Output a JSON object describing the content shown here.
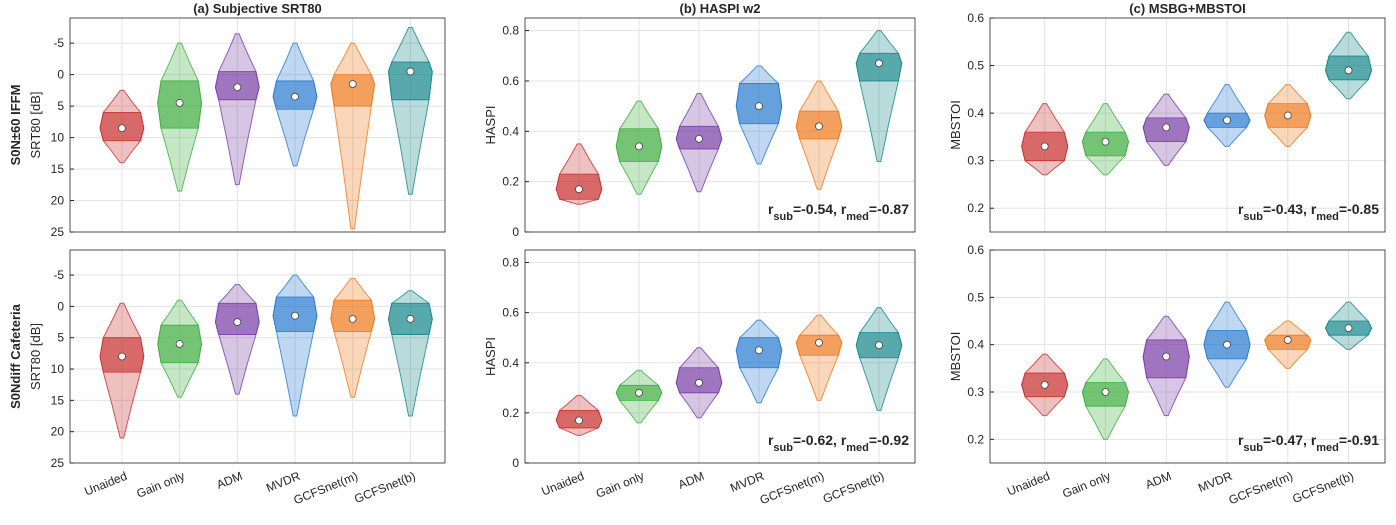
{
  "chart_data": [
    {
      "type": "violin",
      "title": "(a) Subjective SRT80",
      "row_label": "S0N±60 IFFM",
      "ylabel": "SRT80 [dB]",
      "ylim": [
        -9,
        25
      ],
      "y_reversed": true,
      "yticks": [
        -5,
        0,
        5,
        10,
        15,
        20,
        25
      ],
      "grid": true,
      "series": [
        {
          "color": "#c8302e",
          "min": 2.5,
          "q1": 6,
          "median": 8.5,
          "q3": 10.5,
          "max": 14
        },
        {
          "color": "#3fae3f",
          "min": -5,
          "q1": 1,
          "median": 4.5,
          "q3": 8.5,
          "max": 18.5
        },
        {
          "color": "#7b3fa6",
          "min": -6.5,
          "q1": -0.5,
          "median": 2,
          "q3": 4,
          "max": 17.5
        },
        {
          "color": "#2b7bd0",
          "min": -5,
          "q1": 1,
          "median": 3.5,
          "q3": 5.5,
          "max": 14.5
        },
        {
          "color": "#ee7a1e",
          "min": -5,
          "q1": 0,
          "median": 1.5,
          "q3": 5,
          "max": 24.5
        },
        {
          "color": "#17878a",
          "min": -7.5,
          "q1": -2,
          "median": -0.5,
          "q3": 4,
          "max": 19
        }
      ]
    },
    {
      "type": "violin",
      "title": "(b) HASPI w2",
      "ylabel": "HASPI",
      "ylim": [
        0,
        0.85
      ],
      "yticks": [
        0,
        0.2,
        0.4,
        0.6,
        0.8
      ],
      "grid": true,
      "annotation": [
        "r",
        "sub",
        "=-0.54, r",
        "med",
        "=-0.87"
      ],
      "series": [
        {
          "color": "#c8302e",
          "min": 0.11,
          "q1": 0.13,
          "median": 0.17,
          "q3": 0.23,
          "max": 0.35
        },
        {
          "color": "#3fae3f",
          "min": 0.15,
          "q1": 0.28,
          "median": 0.34,
          "q3": 0.41,
          "max": 0.52
        },
        {
          "color": "#7b3fa6",
          "min": 0.16,
          "q1": 0.33,
          "median": 0.37,
          "q3": 0.42,
          "max": 0.55
        },
        {
          "color": "#2b7bd0",
          "min": 0.27,
          "q1": 0.43,
          "median": 0.5,
          "q3": 0.59,
          "max": 0.66
        },
        {
          "color": "#ee7a1e",
          "min": 0.17,
          "q1": 0.37,
          "median": 0.42,
          "q3": 0.48,
          "max": 0.6
        },
        {
          "color": "#17878a",
          "min": 0.28,
          "q1": 0.6,
          "median": 0.67,
          "q3": 0.71,
          "max": 0.8
        }
      ]
    },
    {
      "type": "violin",
      "title": "(c) MSBG+MBSTOI",
      "ylabel": "MBSTOI",
      "ylim": [
        0.15,
        0.6
      ],
      "yticks": [
        0.2,
        0.3,
        0.4,
        0.5,
        0.6
      ],
      "grid": true,
      "annotation": [
        "r",
        "sub",
        "=-0.43, r",
        "med",
        "=-0.85"
      ],
      "series": [
        {
          "color": "#c8302e",
          "min": 0.27,
          "q1": 0.3,
          "median": 0.33,
          "q3": 0.36,
          "max": 0.42
        },
        {
          "color": "#3fae3f",
          "min": 0.27,
          "q1": 0.31,
          "median": 0.34,
          "q3": 0.36,
          "max": 0.42
        },
        {
          "color": "#7b3fa6",
          "min": 0.29,
          "q1": 0.34,
          "median": 0.37,
          "q3": 0.39,
          "max": 0.44
        },
        {
          "color": "#2b7bd0",
          "min": 0.33,
          "q1": 0.37,
          "median": 0.385,
          "q3": 0.4,
          "max": 0.46
        },
        {
          "color": "#ee7a1e",
          "min": 0.33,
          "q1": 0.37,
          "median": 0.395,
          "q3": 0.42,
          "max": 0.46
        },
        {
          "color": "#17878a",
          "min": 0.43,
          "q1": 0.47,
          "median": 0.49,
          "q3": 0.52,
          "max": 0.57
        }
      ]
    },
    {
      "type": "violin",
      "row_label": "S0Ndiff Cafeteria",
      "ylabel": "SRT80 [dB]",
      "ylim": [
        -9,
        25
      ],
      "y_reversed": true,
      "yticks": [
        -5,
        0,
        5,
        10,
        15,
        20,
        25
      ],
      "grid": true,
      "categories": [
        "Unaided",
        "Gain only",
        "ADM",
        "MVDR",
        "GCFSnet(m)",
        "GCFSnet(b)"
      ],
      "series": [
        {
          "color": "#c8302e",
          "min": -0.5,
          "q1": 5,
          "median": 8,
          "q3": 10.5,
          "max": 21
        },
        {
          "color": "#3fae3f",
          "min": -1,
          "q1": 3,
          "median": 6,
          "q3": 9,
          "max": 14.5
        },
        {
          "color": "#7b3fa6",
          "min": -3.5,
          "q1": -0.5,
          "median": 2.5,
          "q3": 4.5,
          "max": 14
        },
        {
          "color": "#2b7bd0",
          "min": -5,
          "q1": -1.5,
          "median": 1.5,
          "q3": 4,
          "max": 17.5
        },
        {
          "color": "#ee7a1e",
          "min": -4.5,
          "q1": -1,
          "median": 2,
          "q3": 4,
          "max": 14.5
        },
        {
          "color": "#17878a",
          "min": -2.5,
          "q1": -0.5,
          "median": 2,
          "q3": 4.5,
          "max": 17.5
        }
      ]
    },
    {
      "type": "violin",
      "ylabel": "HASPI",
      "ylim": [
        0,
        0.85
      ],
      "yticks": [
        0,
        0.2,
        0.4,
        0.6,
        0.8
      ],
      "grid": true,
      "annotation": [
        "r",
        "sub",
        "=-0.62, r",
        "med",
        "=-0.92"
      ],
      "categories": [
        "Unaided",
        "Gain only",
        "ADM",
        "MVDR",
        "GCFSnet(m)",
        "GCFSnet(b)"
      ],
      "series": [
        {
          "color": "#c8302e",
          "min": 0.11,
          "q1": 0.14,
          "median": 0.17,
          "q3": 0.21,
          "max": 0.27
        },
        {
          "color": "#3fae3f",
          "min": 0.16,
          "q1": 0.25,
          "median": 0.28,
          "q3": 0.31,
          "max": 0.37
        },
        {
          "color": "#7b3fa6",
          "min": 0.18,
          "q1": 0.28,
          "median": 0.32,
          "q3": 0.38,
          "max": 0.46
        },
        {
          "color": "#2b7bd0",
          "min": 0.24,
          "q1": 0.38,
          "median": 0.45,
          "q3": 0.5,
          "max": 0.57
        },
        {
          "color": "#ee7a1e",
          "min": 0.25,
          "q1": 0.43,
          "median": 0.48,
          "q3": 0.51,
          "max": 0.59
        },
        {
          "color": "#17878a",
          "min": 0.21,
          "q1": 0.42,
          "median": 0.47,
          "q3": 0.52,
          "max": 0.62
        }
      ]
    },
    {
      "type": "violin",
      "ylabel": "MBSTOI",
      "ylim": [
        0.15,
        0.6
      ],
      "yticks": [
        0.2,
        0.3,
        0.4,
        0.5,
        0.6
      ],
      "grid": true,
      "annotation": [
        "r",
        "sub",
        "=-0.47, r",
        "med",
        "=-0.91"
      ],
      "categories": [
        "Unaided",
        "Gain only",
        "ADM",
        "MVDR",
        "GCFSnet(m)",
        "GCFSnet(b)"
      ],
      "series": [
        {
          "color": "#c8302e",
          "min": 0.25,
          "q1": 0.29,
          "median": 0.315,
          "q3": 0.34,
          "max": 0.38
        },
        {
          "color": "#3fae3f",
          "min": 0.2,
          "q1": 0.27,
          "median": 0.3,
          "q3": 0.32,
          "max": 0.37
        },
        {
          "color": "#7b3fa6",
          "min": 0.25,
          "q1": 0.33,
          "median": 0.375,
          "q3": 0.41,
          "max": 0.46
        },
        {
          "color": "#2b7bd0",
          "min": 0.31,
          "q1": 0.37,
          "median": 0.4,
          "q3": 0.43,
          "max": 0.49
        },
        {
          "color": "#ee7a1e",
          "min": 0.35,
          "q1": 0.39,
          "median": 0.41,
          "q3": 0.42,
          "max": 0.45
        },
        {
          "color": "#17878a",
          "min": 0.39,
          "q1": 0.42,
          "median": 0.435,
          "q3": 0.45,
          "max": 0.49
        }
      ]
    }
  ]
}
